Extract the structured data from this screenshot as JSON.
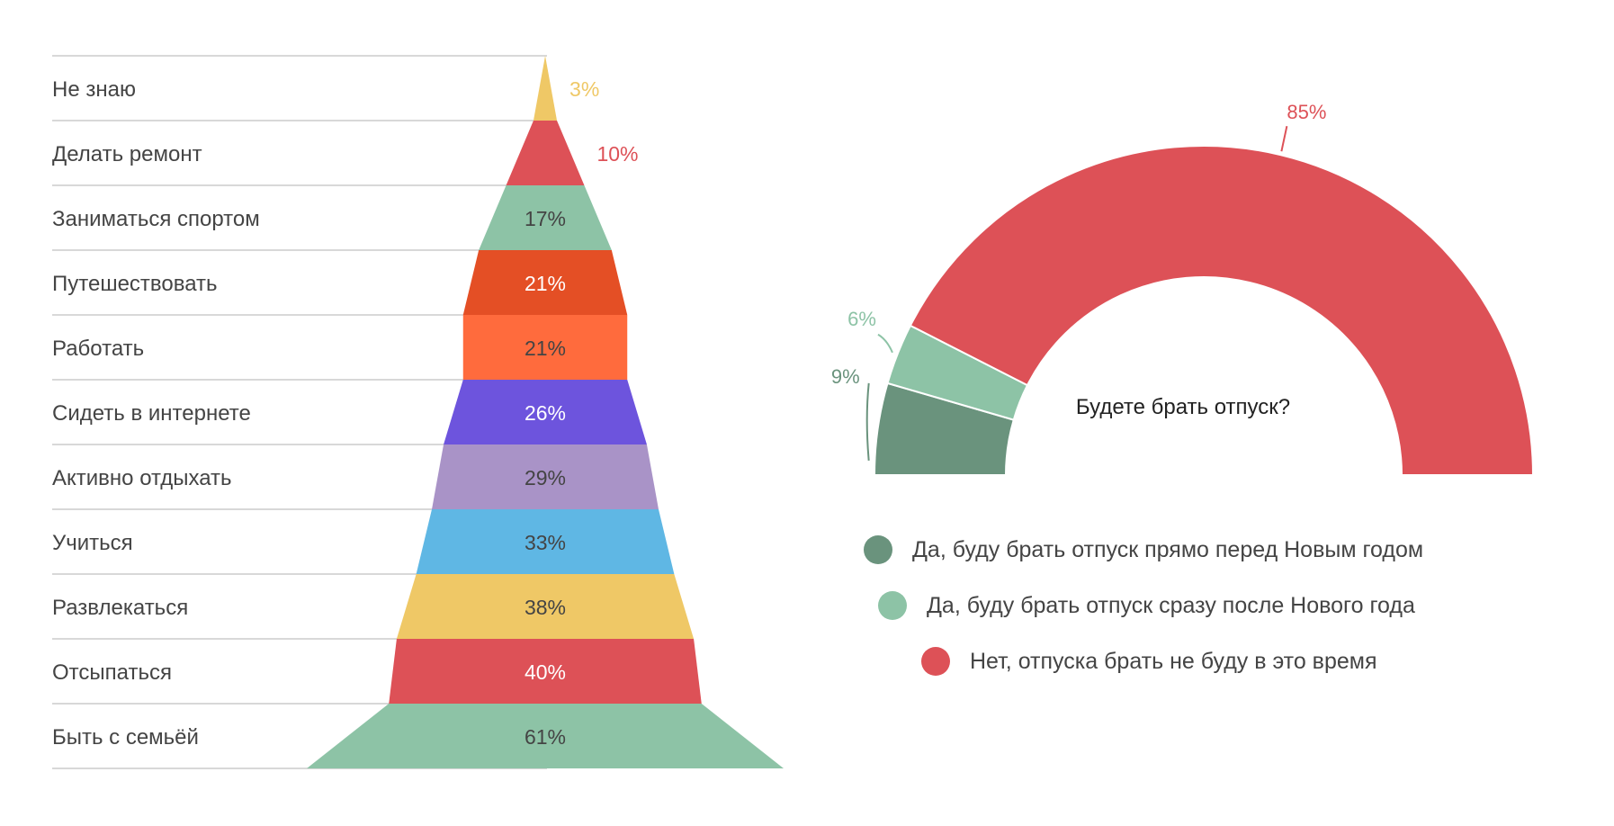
{
  "chart_data": [
    {
      "type": "funnel",
      "title": "",
      "categories": [
        "Не знаю",
        "Делать ремонт",
        "Заниматься спортом",
        "Путешествовать",
        "Работать",
        "Сидеть в интернете",
        "Активно отдыхать",
        "Учиться",
        "Развлекаться",
        "Отсыпаться",
        "Быть с семьёй"
      ],
      "values": [
        3,
        10,
        17,
        21,
        21,
        26,
        29,
        33,
        38,
        40,
        61
      ],
      "value_labels": [
        "3%",
        "10%",
        "17%",
        "21%",
        "21%",
        "26%",
        "29%",
        "33%",
        "38%",
        "40%",
        "61%"
      ],
      "colors": [
        "#EFC866",
        "#DD5157",
        "#8DC3A6",
        "#E44F25",
        "#FF6B3D",
        "#6D54DD",
        "#A993C7",
        "#5FB7E4",
        "#EFC866",
        "#DD5157",
        "#8DC3A6"
      ],
      "label_colors": [
        "#EFC866",
        "#DD5157",
        "#444444",
        "#ffffff",
        "#444444",
        "#ffffff",
        "#444444",
        "#444444",
        "#444444",
        "#ffffff",
        "#444444"
      ],
      "unit": "%"
    },
    {
      "type": "pie",
      "subtype": "half-donut",
      "title": "Будете брать отпуск?",
      "series": [
        {
          "name": "Да, буду брать отпуск прямо перед Новым годом",
          "value": 9,
          "label": "9%",
          "color": "#6A937D"
        },
        {
          "name": "Да, буду брать отпуск сразу после Нового года",
          "value": 6,
          "label": "6%",
          "color": "#8DC3A6"
        },
        {
          "name": "Нет, отпуска брать не буду в это время",
          "value": 85,
          "label": "85%",
          "color": "#DD5157"
        }
      ],
      "legend_position": "bottom"
    }
  ]
}
